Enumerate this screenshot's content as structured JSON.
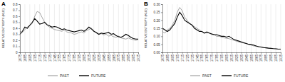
{
  "chart_data": [
    {
      "type": "line",
      "title": "A",
      "y_label": "RELATIVE ENTROPY (KLD)",
      "x": [
        1675,
        1680,
        1685,
        1690,
        1695,
        1700,
        1705,
        1710,
        1715,
        1720,
        1725,
        1730,
        1735,
        1740,
        1745,
        1750,
        1755,
        1760,
        1765,
        1770,
        1775,
        1780,
        1785,
        1790,
        1795,
        1800,
        1805,
        1810,
        1815,
        1820,
        1825,
        1830,
        1835,
        1840,
        1845,
        1850,
        1855,
        1860,
        1865,
        1870,
        1875,
        1880,
        1885,
        1890,
        1895,
        1900,
        1905,
        1910,
        1915
      ],
      "series": [
        {
          "name": "PAST",
          "color": "#999999",
          "values": [
            0.35,
            0.33,
            0.38,
            0.42,
            0.45,
            0.48,
            0.6,
            0.68,
            0.66,
            0.58,
            0.5,
            0.45,
            0.42,
            0.4,
            0.38,
            0.37,
            0.36,
            0.35,
            0.37,
            0.34,
            0.33,
            0.32,
            0.3,
            0.31,
            0.33,
            0.34,
            0.32,
            0.36,
            0.38,
            0.4,
            0.36,
            0.32,
            0.3,
            0.31,
            0.29,
            0.3,
            0.27,
            0.28,
            0.26,
            0.25,
            0.27,
            0.24,
            0.23,
            0.22,
            0.24,
            0.22,
            0.21,
            0.2,
            0.21
          ]
        },
        {
          "name": "FUTURE",
          "color": "#000000",
          "values": [
            0.3,
            0.35,
            0.42,
            0.4,
            0.45,
            0.5,
            0.56,
            0.52,
            0.47,
            0.48,
            0.5,
            0.46,
            0.44,
            0.42,
            0.43,
            0.42,
            0.4,
            0.38,
            0.39,
            0.37,
            0.36,
            0.35,
            0.34,
            0.35,
            0.36,
            0.37,
            0.35,
            0.38,
            0.42,
            0.39,
            0.35,
            0.33,
            0.3,
            0.32,
            0.31,
            0.32,
            0.33,
            0.3,
            0.31,
            0.28,
            0.26,
            0.25,
            0.27,
            0.3,
            0.28,
            0.25,
            0.23,
            0.22,
            0.22
          ]
        }
      ],
      "xlim": [
        1675,
        1915
      ],
      "xticks": [
        1675,
        1685,
        1695,
        1705,
        1715,
        1725,
        1735,
        1745,
        1755,
        1765,
        1775,
        1785,
        1795,
        1805,
        1815,
        1825,
        1835,
        1845,
        1855,
        1865,
        1875,
        1885,
        1895,
        1905,
        1915
      ],
      "ylim": [
        0,
        0.8
      ],
      "yticks": [
        0,
        0.1,
        0.2,
        0.3,
        0.4,
        0.5,
        0.6,
        0.7,
        0.8
      ],
      "grid": true,
      "legend": "bottom"
    },
    {
      "type": "line",
      "title": "B",
      "y_label": "RELATIVE ENTROPY (KLD)",
      "x": [
        1675,
        1680,
        1685,
        1690,
        1695,
        1700,
        1705,
        1710,
        1715,
        1720,
        1725,
        1730,
        1735,
        1740,
        1745,
        1750,
        1755,
        1760,
        1765,
        1770,
        1775,
        1780,
        1785,
        1790,
        1795,
        1800,
        1805,
        1810,
        1815,
        1820,
        1825,
        1830,
        1835,
        1840,
        1845,
        1850,
        1855,
        1860,
        1865,
        1870,
        1875,
        1880,
        1885,
        1890,
        1895,
        1900,
        1905,
        1910,
        1915
      ],
      "series": [
        {
          "name": "PAST",
          "color": "#999999",
          "values": [
            0.13,
            0.12,
            0.14,
            0.15,
            0.17,
            0.2,
            0.25,
            0.28,
            0.26,
            0.22,
            0.2,
            0.18,
            0.17,
            0.16,
            0.15,
            0.14,
            0.13,
            0.12,
            0.13,
            0.12,
            0.11,
            0.11,
            0.1,
            0.1,
            0.095,
            0.09,
            0.088,
            0.085,
            0.08,
            0.075,
            0.07,
            0.065,
            0.06,
            0.058,
            0.055,
            0.05,
            0.045,
            0.04,
            0.038,
            0.035,
            0.032,
            0.03,
            0.028,
            0.027,
            0.025,
            0.024,
            0.022,
            0.02,
            0.02
          ]
        },
        {
          "name": "FUTURE",
          "color": "#000000",
          "values": [
            0.15,
            0.14,
            0.13,
            0.14,
            0.16,
            0.18,
            0.22,
            0.25,
            0.23,
            0.2,
            0.19,
            0.18,
            0.17,
            0.15,
            0.14,
            0.13,
            0.13,
            0.12,
            0.125,
            0.12,
            0.115,
            0.11,
            0.11,
            0.105,
            0.1,
            0.1,
            0.095,
            0.1,
            0.09,
            0.08,
            0.075,
            0.07,
            0.065,
            0.06,
            0.055,
            0.05,
            0.048,
            0.045,
            0.04,
            0.035,
            0.033,
            0.03,
            0.028,
            0.026,
            0.025,
            0.023,
            0.022,
            0.02,
            0.02
          ]
        }
      ],
      "xlim": [
        1675,
        1915
      ],
      "xticks": [
        1675,
        1685,
        1695,
        1705,
        1715,
        1725,
        1735,
        1745,
        1755,
        1765,
        1775,
        1785,
        1795,
        1805,
        1815,
        1825,
        1835,
        1845,
        1855,
        1865,
        1875,
        1885,
        1895,
        1905,
        1915
      ],
      "ylim": [
        0,
        0.3
      ],
      "yticks": [
        {
          "value": 0,
          "label": "0.00"
        },
        0.05,
        {
          "value": 0.1,
          "label": "0.10"
        },
        0.15,
        {
          "value": 0.2,
          "label": "0.20"
        },
        0.25,
        {
          "value": 0.3,
          "label": "0.30"
        }
      ],
      "grid": true,
      "legend": "bottom"
    }
  ]
}
